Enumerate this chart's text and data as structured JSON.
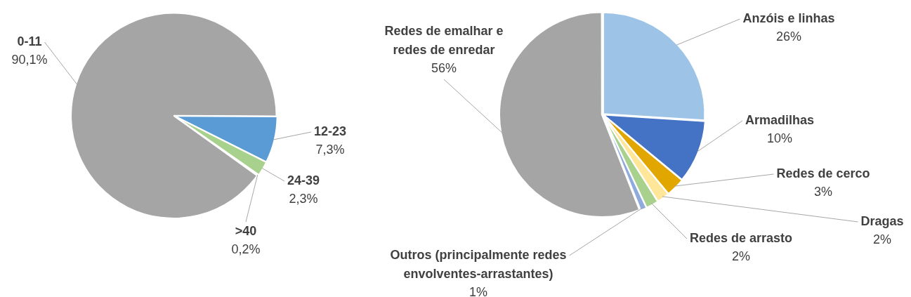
{
  "chart_data": [
    {
      "type": "pie",
      "categories": [
        "0-11",
        "12-23",
        "24-39",
        ">40"
      ],
      "values": [
        90.1,
        7.3,
        2.3,
        0.2
      ],
      "colors": [
        "#a5a5a5",
        "#5b9bd5",
        "#a9d18e",
        "#4472c4"
      ],
      "value_labels": [
        "90,1%",
        "7,3%",
        "2,3%",
        "0,2%"
      ]
    },
    {
      "type": "pie",
      "categories": [
        "Anzóis e linhas",
        "Armadilhas",
        "Redes de cerco",
        "Dragas",
        "Redes de arrasto",
        "Outros (principalmente redes envolventes-arrastantes)",
        "Redes de emalhar e redes de enredar"
      ],
      "values": [
        26,
        10,
        3,
        2,
        2,
        1,
        56
      ],
      "colors": [
        "#9dc3e6",
        "#4472c4",
        "#e2a600",
        "#ffe699",
        "#a9d18e",
        "#8faadc",
        "#a5a5a5"
      ],
      "value_labels": [
        "26%",
        "10%",
        "3%",
        "2%",
        "2%",
        "1%",
        "56%"
      ]
    }
  ]
}
